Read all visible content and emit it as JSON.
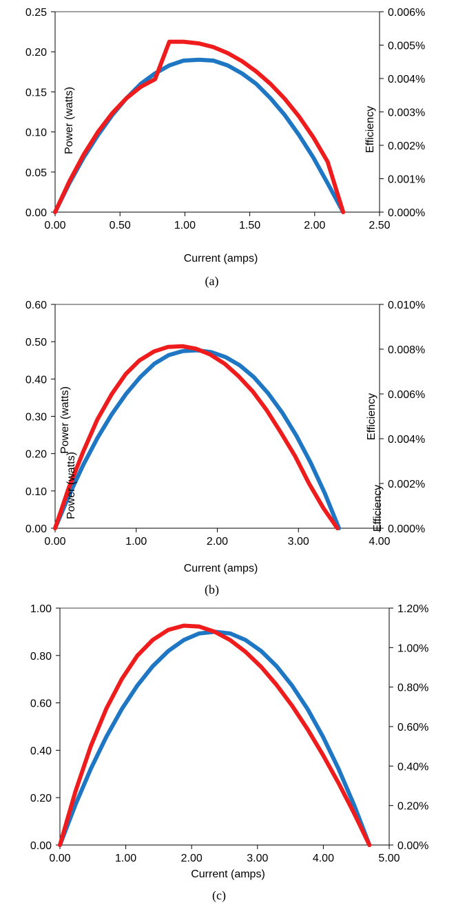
{
  "chart_data": [
    {
      "type": "line",
      "caption": "(a)",
      "xlabel": "Current (amps)",
      "ylabel": "Power (watts)",
      "y2label": "Efficiency",
      "xlim": [
        0,
        2.5
      ],
      "ylim": [
        0,
        0.25
      ],
      "y2lim": [
        0,
        0.006
      ],
      "xticks": [
        "0.00",
        "0.50",
        "1.00",
        "1.50",
        "2.00",
        "2.50"
      ],
      "yticks": [
        "0.00",
        "0.05",
        "0.10",
        "0.15",
        "0.20",
        "0.25"
      ],
      "y2ticks": [
        "0.000%",
        "0.001%",
        "0.002%",
        "0.003%",
        "0.004%",
        "0.005%",
        "0.006%"
      ],
      "grid": false,
      "series": [
        {
          "axis": "left",
          "color": "#1f77c4",
          "x": [
            0.0,
            0.11,
            0.22,
            0.33,
            0.44,
            0.55,
            0.66,
            0.77,
            0.88,
            0.99,
            1.11,
            1.22,
            1.33,
            1.44,
            1.55,
            1.66,
            1.77,
            1.88,
            1.99,
            2.1,
            2.22
          ],
          "values": [
            0.0,
            0.036,
            0.068,
            0.096,
            0.121,
            0.142,
            0.16,
            0.173,
            0.183,
            0.189,
            0.19,
            0.189,
            0.183,
            0.173,
            0.16,
            0.142,
            0.121,
            0.096,
            0.068,
            0.036,
            0.0
          ]
        },
        {
          "axis": "right",
          "color": "#ee1c1c",
          "x": [
            0.0,
            0.11,
            0.22,
            0.33,
            0.44,
            0.55,
            0.66,
            0.77,
            0.88,
            0.99,
            1.11,
            1.22,
            1.33,
            1.44,
            1.55,
            1.66,
            1.77,
            1.88,
            1.99,
            2.1,
            2.22
          ],
          "values": [
            0.0,
            0.00092,
            0.00172,
            0.0024,
            0.00296,
            0.00341,
            0.00375,
            0.00398,
            0.0051,
            0.0051,
            0.00505,
            0.00494,
            0.00476,
            0.00452,
            0.00421,
            0.00384,
            0.00339,
            0.00286,
            0.00224,
            0.00151,
            0.0
          ],
          "note_values_read": "red peaks near 0.21 on the left scale"
        }
      ]
    },
    {
      "type": "line",
      "caption": "(b)",
      "xlabel": "Current (amps)",
      "ylabel": "Power (watts)",
      "y2label": "Efficiency",
      "xlim": [
        0,
        4
      ],
      "ylim": [
        0,
        0.6
      ],
      "y2lim": [
        0,
        0.01
      ],
      "xticks": [
        "0.00",
        "1.00",
        "2.00",
        "3.00",
        "4.00"
      ],
      "yticks": [
        "0.00",
        "0.10",
        "0.20",
        "0.30",
        "0.40",
        "0.50",
        "0.60"
      ],
      "y2ticks": [
        "0.000%",
        "0.002%",
        "0.004%",
        "0.006%",
        "0.008%",
        "0.010%"
      ],
      "grid": false,
      "series": [
        {
          "axis": "left",
          "color": "#1f77c4",
          "x": [
            0.0,
            0.175,
            0.35,
            0.525,
            0.7,
            0.875,
            1.05,
            1.225,
            1.4,
            1.575,
            1.75,
            1.925,
            2.1,
            2.275,
            2.45,
            2.625,
            2.8,
            2.975,
            3.15,
            3.325,
            3.5
          ],
          "values": [
            0.0,
            0.09,
            0.171,
            0.243,
            0.306,
            0.36,
            0.405,
            0.441,
            0.464,
            0.475,
            0.477,
            0.472,
            0.459,
            0.437,
            0.405,
            0.362,
            0.31,
            0.248,
            0.176,
            0.094,
            0.0
          ]
        },
        {
          "axis": "left",
          "color": "#ee1c1c",
          "x": [
            0.0,
            0.17,
            0.35,
            0.52,
            0.7,
            0.87,
            1.04,
            1.22,
            1.39,
            1.57,
            1.74,
            1.91,
            2.09,
            2.26,
            2.44,
            2.61,
            2.78,
            2.96,
            3.13,
            3.31,
            3.48
          ],
          "values": [
            0.0,
            0.109,
            0.207,
            0.291,
            0.36,
            0.413,
            0.45,
            0.474,
            0.486,
            0.488,
            0.481,
            0.466,
            0.441,
            0.408,
            0.366,
            0.316,
            0.258,
            0.193,
            0.12,
            0.053,
            0.0
          ]
        }
      ]
    },
    {
      "type": "line",
      "caption": "(c)",
      "xlabel": "Current (amps)",
      "ylabel": "Power (watts)",
      "y2label": "Efficiency",
      "xlim": [
        0,
        5
      ],
      "ylim": [
        0,
        1
      ],
      "y2lim": [
        0,
        0.012
      ],
      "xticks": [
        "0.00",
        "1.00",
        "2.00",
        "3.00",
        "4.00",
        "5.00"
      ],
      "yticks": [
        "0.00",
        "0.20",
        "0.40",
        "0.60",
        "0.80",
        "1.00"
      ],
      "y2ticks": [
        "0.00%",
        "0.20%",
        "0.40%",
        "0.60%",
        "0.80%",
        "1.00%",
        "1.20%"
      ],
      "grid": false,
      "series": [
        {
          "axis": "left",
          "color": "#1f77c4",
          "x": [
            0.0,
            0.235,
            0.47,
            0.705,
            0.94,
            1.175,
            1.41,
            1.645,
            1.88,
            2.115,
            2.35,
            2.585,
            2.82,
            3.055,
            3.29,
            3.525,
            3.76,
            3.995,
            4.23,
            4.465,
            4.7
          ],
          "values": [
            0.0,
            0.17,
            0.322,
            0.457,
            0.574,
            0.673,
            0.755,
            0.819,
            0.865,
            0.893,
            0.9,
            0.893,
            0.865,
            0.819,
            0.755,
            0.673,
            0.574,
            0.457,
            0.322,
            0.17,
            0.0
          ]
        },
        {
          "axis": "left",
          "color": "#ee1c1c",
          "x": [
            0.0,
            0.235,
            0.47,
            0.705,
            0.94,
            1.175,
            1.41,
            1.645,
            1.88,
            2.115,
            2.35,
            2.585,
            2.82,
            3.055,
            3.29,
            3.525,
            3.76,
            3.995,
            4.23,
            4.465,
            4.7
          ],
          "values": [
            0.0,
            0.226,
            0.418,
            0.576,
            0.701,
            0.799,
            0.866,
            0.908,
            0.926,
            0.922,
            0.9,
            0.865,
            0.815,
            0.752,
            0.676,
            0.588,
            0.489,
            0.38,
            0.262,
            0.135,
            0.0
          ]
        }
      ]
    }
  ]
}
